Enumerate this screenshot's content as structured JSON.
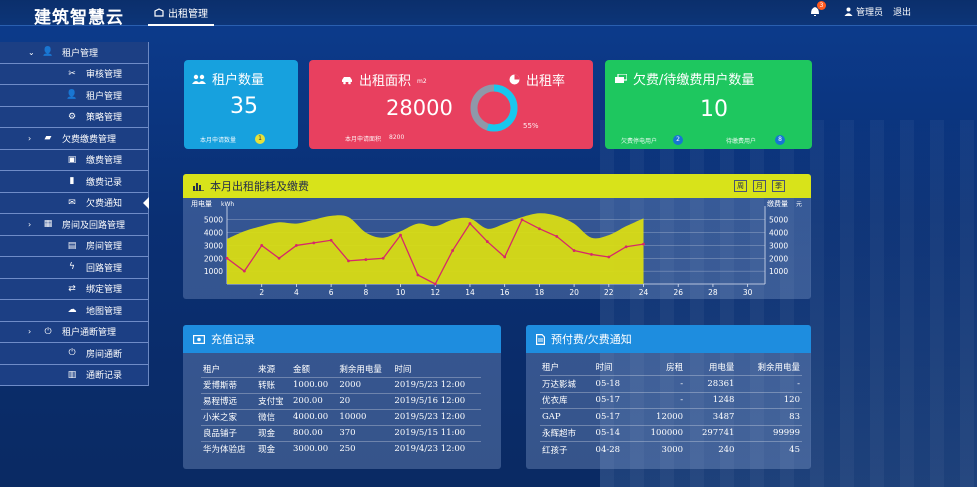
{
  "header": {
    "brand": "建筑智慧云",
    "tab_label": "出租管理",
    "notification_count": "3",
    "user_label": "管理员",
    "logout_label": "退出"
  },
  "sidebar": {
    "items": [
      {
        "label": "租户管理",
        "icon": "user-icon",
        "level": "group",
        "expanded": true
      },
      {
        "label": "审核管理",
        "icon": "scissors-icon",
        "level": "sub"
      },
      {
        "label": "租户管理",
        "icon": "user-icon",
        "level": "sub"
      },
      {
        "label": "策略管理",
        "icon": "gears-icon",
        "level": "sub"
      },
      {
        "label": "欠费缴费管理",
        "icon": "money-icon",
        "level": "group",
        "expanded": false
      },
      {
        "label": "缴费管理",
        "icon": "wallet-icon",
        "level": "sub"
      },
      {
        "label": "缴费记录",
        "icon": "clipboard-icon",
        "level": "sub"
      },
      {
        "label": "欠费通知",
        "icon": "chat-icon",
        "level": "sub",
        "active": true
      },
      {
        "label": "房间及回路管理",
        "icon": "building-icon",
        "level": "group",
        "expanded": false
      },
      {
        "label": "房间管理",
        "icon": "doc-icon",
        "level": "sub"
      },
      {
        "label": "回路管理",
        "icon": "bolt-icon",
        "level": "sub"
      },
      {
        "label": "绑定管理",
        "icon": "exchange-icon",
        "level": "sub"
      },
      {
        "label": "地图管理",
        "icon": "map-icon",
        "level": "sub"
      },
      {
        "label": "租户通断管理",
        "icon": "power-icon",
        "level": "group",
        "expanded": false
      },
      {
        "label": "房间通断",
        "icon": "power-icon",
        "level": "sub"
      },
      {
        "label": "通断记录",
        "icon": "list-icon",
        "level": "sub"
      }
    ]
  },
  "cards": {
    "tenants": {
      "title": "租户数量",
      "value": "35",
      "footer": "本月申请数量",
      "footer_badge": "1"
    },
    "rent": {
      "area_title": "出租面积",
      "area_unit": "m2",
      "area_value": "28000",
      "footer": "本月申请面积",
      "footer_value": "8200",
      "rate_title": "出租率",
      "rate_label": "55%",
      "rate_value": 0.55
    },
    "arrears": {
      "title": "欠费/待缴费用户数量",
      "value": "10",
      "left_label": "欠费停电用户",
      "left_badge": "2",
      "right_label": "待缴费用户",
      "right_badge": "8"
    }
  },
  "chart_panel": {
    "title": "本月出租能耗及缴费",
    "buttons": [
      "周",
      "月",
      "季"
    ]
  },
  "chart_data": {
    "type": "area",
    "y_left_label": "用电量",
    "y_left_unit": "kWh",
    "y_right_label": "缴费量",
    "y_right_unit": "元",
    "x_ticks": [
      "2",
      "4",
      "6",
      "8",
      "10",
      "12",
      "14",
      "16",
      "18",
      "20",
      "22",
      "24",
      "26",
      "28",
      "30"
    ],
    "y_ticks": [
      "1000",
      "2000",
      "3000",
      "4000",
      "5000"
    ],
    "xlim": [
      0,
      31
    ],
    "ylim": [
      0,
      5600
    ],
    "area_series": {
      "name": "",
      "x": [
        0,
        1,
        2,
        3,
        4,
        5,
        6,
        7,
        8,
        9,
        10,
        11,
        12,
        13,
        14,
        15,
        16,
        17,
        18,
        19,
        20,
        21,
        22,
        23,
        24
      ],
      "values": [
        3500,
        4100,
        4500,
        4800,
        4700,
        5000,
        5300,
        5200,
        4000,
        3600,
        4100,
        4700,
        4500,
        5000,
        5100,
        4300,
        4700,
        5200,
        5500,
        5300,
        4700,
        3600,
        3800,
        4500,
        5100
      ]
    },
    "line_series": {
      "name": "",
      "x": [
        0,
        1,
        2,
        3,
        4,
        5,
        6,
        7,
        8,
        9,
        10,
        11,
        12,
        13,
        14,
        15,
        16,
        17,
        18,
        19,
        20,
        21,
        22,
        23,
        24
      ],
      "values": [
        2000,
        1000,
        3000,
        2000,
        3000,
        3200,
        3400,
        1800,
        1900,
        2000,
        3800,
        700,
        0,
        2600,
        4700,
        3300,
        2100,
        5000,
        4300,
        3700,
        2600,
        2300,
        2100,
        2900,
        3100
      ]
    }
  },
  "recharge": {
    "title": "充值记录",
    "columns": [
      "租户",
      "来源",
      "金额",
      "剩余用电量",
      "时间"
    ],
    "rows": [
      [
        "爱博斯蒂",
        "转账",
        "1000.00",
        "2000",
        "2019/5/23 12:00"
      ],
      [
        "易程博远",
        "支付宝",
        "200.00",
        "20",
        "2019/5/16 12:00"
      ],
      [
        "小米之家",
        "微信",
        "4000.00",
        "10000",
        "2019/5/23 12:00"
      ],
      [
        "良品铺子",
        "现金",
        "800.00",
        "370",
        "2019/5/15 11:00"
      ],
      [
        "华为体验店",
        "现金",
        "3000.00",
        "250",
        "2019/4/23 12:00"
      ]
    ]
  },
  "notices": {
    "title": "预付费/欠费通知",
    "columns": [
      "租户",
      "时间",
      "房租",
      "用电量",
      "剩余用电量"
    ],
    "rows": [
      [
        "万达影城",
        "05-18",
        "-",
        "28361",
        "-"
      ],
      [
        "优衣库",
        "05-17",
        "-",
        "1248",
        "120"
      ],
      [
        "GAP",
        "05-17",
        "12000",
        "3487",
        "83"
      ],
      [
        "永辉超市",
        "05-14",
        "100000",
        "297741",
        "99999"
      ],
      [
        "红孩子",
        "04-28",
        "3000",
        "240",
        "45"
      ]
    ]
  }
}
